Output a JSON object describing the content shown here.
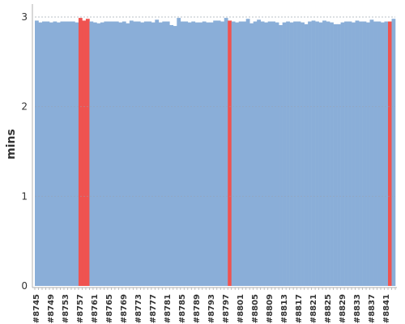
{
  "chart_data": {
    "type": "area",
    "ylabel": "mins",
    "ylim": [
      0,
      3
    ],
    "yticks": [
      0,
      1,
      2,
      3
    ],
    "threshold": 3,
    "grid": true,
    "x_start": 8745,
    "x_end": 8843,
    "x_tick_labels": [
      "#8745",
      "#8749",
      "#8753",
      "#8757",
      "#8761",
      "#8765",
      "#8769",
      "#8773",
      "#8777",
      "#8781",
      "#8785",
      "#8789",
      "#8793",
      "#8797",
      "#8801",
      "#8805",
      "#8809",
      "#8813",
      "#8817",
      "#8821",
      "#8825",
      "#8829",
      "#8833",
      "#8837",
      "#8841"
    ],
    "values": [
      2.96,
      2.94,
      2.95,
      2.95,
      2.94,
      2.95,
      2.94,
      2.95,
      2.95,
      2.95,
      2.95,
      2.94,
      2.99,
      2.96,
      2.98,
      2.95,
      2.94,
      2.93,
      2.94,
      2.95,
      2.95,
      2.95,
      2.95,
      2.94,
      2.95,
      2.93,
      2.96,
      2.95,
      2.95,
      2.94,
      2.95,
      2.95,
      2.94,
      2.97,
      2.94,
      2.95,
      2.95,
      2.91,
      2.9,
      2.99,
      2.95,
      2.95,
      2.94,
      2.95,
      2.94,
      2.94,
      2.95,
      2.94,
      2.94,
      2.96,
      2.96,
      2.95,
      2.99,
      2.96,
      2.95,
      2.94,
      2.95,
      2.95,
      2.98,
      2.93,
      2.95,
      2.97,
      2.95,
      2.94,
      2.95,
      2.95,
      2.94,
      2.91,
      2.94,
      2.95,
      2.94,
      2.95,
      2.95,
      2.94,
      2.92,
      2.95,
      2.96,
      2.95,
      2.94,
      2.96,
      2.95,
      2.94,
      2.92,
      2.92,
      2.94,
      2.95,
      2.95,
      2.94,
      2.96,
      2.95,
      2.95,
      2.94,
      2.97,
      2.95,
      2.95,
      2.94,
      2.95,
      2.95,
      2.98
    ],
    "failed_builds": [
      "#8757",
      "#8758",
      "#8759",
      "#8798",
      "#8842"
    ],
    "colors": {
      "normal": "#8aaed8",
      "failed": "#ef5350",
      "axis": "#b0b0b0",
      "grid": "#9aa3ad"
    }
  }
}
